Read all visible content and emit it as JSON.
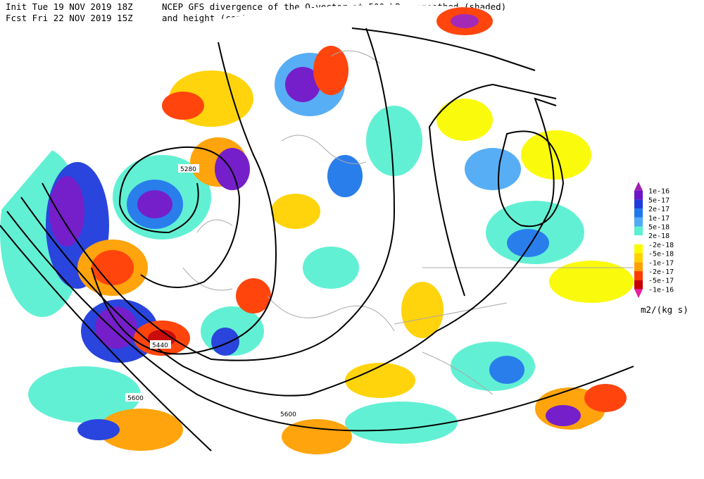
{
  "header": {
    "init": "Init  Tue 19 NOV 2019 18Z",
    "forecast": "Fcst Fri 22 NOV 2019 15Z",
    "title_line1": "NCEP GFS divergence of the Q-vector at 500 hPa, smoothed (shaded)",
    "title_line2": "and height (contours)"
  },
  "colorbar": {
    "labels": [
      "1e-16",
      "5e-17",
      "2e-17",
      "1e-17",
      "5e-18",
      "2e-18",
      "-2e-18",
      "-5e-18",
      "-1e-17",
      "-2e-17",
      "-5e-17",
      "-1e-16"
    ],
    "colors": [
      "#a01eb4",
      "#6e14c8",
      "#1e3cdc",
      "#1e78eb",
      "#50aaf5",
      "#5af0d2",
      "#ffffff",
      "#fafa00",
      "#ffd200",
      "#ffa000",
      "#ff3c00",
      "#c80000",
      "#e61ea0"
    ],
    "unit": "m2/(kg s)"
  },
  "contour_labels": [
    "5280",
    "5440",
    "5600",
    "5600"
  ]
}
